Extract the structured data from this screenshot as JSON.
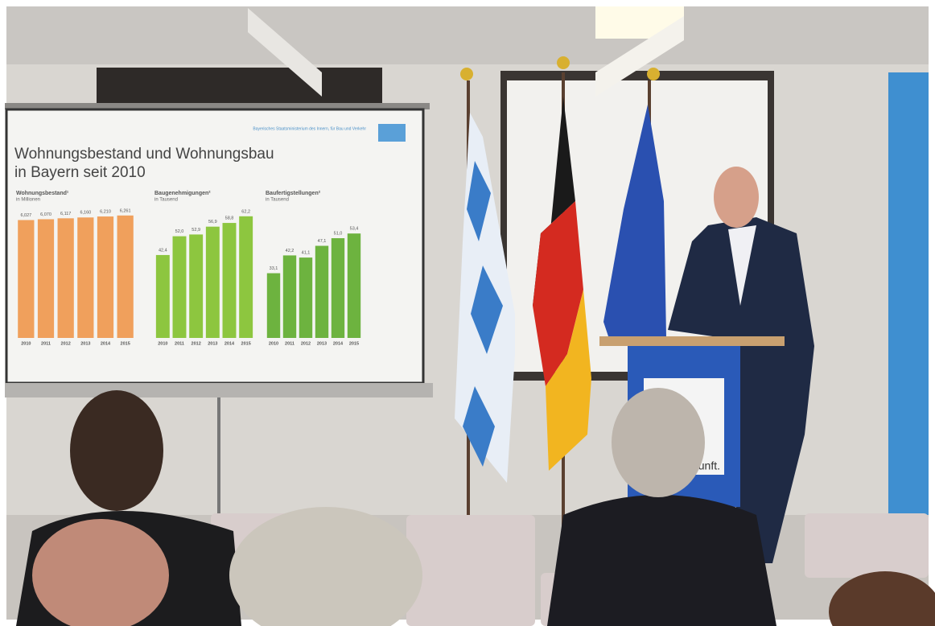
{
  "slide": {
    "header": "Bayerisches Staatsministerium des Innern, für Bau und Verkehr",
    "title_lines": [
      "Wohnungsbestand und Wohnungsbau",
      "in Bayern seit 2010"
    ]
  },
  "podium_text": "unft.",
  "chart_data": [
    {
      "type": "bar",
      "title": "Wohnungsbestand¹",
      "subtitle": "in Millionen",
      "categories": [
        "2010",
        "2011",
        "2012",
        "2013",
        "2014",
        "2015"
      ],
      "values": [
        6.027,
        6.07,
        6.117,
        6.16,
        6.21,
        6.261
      ],
      "value_labels": [
        "6,027",
        "6,070",
        "6,117",
        "6,160",
        "6,210",
        "6,261"
      ],
      "color": "#f0a05c",
      "ylim": [
        0,
        6.5
      ]
    },
    {
      "type": "bar",
      "title": "Baugenehmigungen²",
      "subtitle": "in Tausend",
      "categories": [
        "2010",
        "2011",
        "2012",
        "2013",
        "2014",
        "2015"
      ],
      "values": [
        42.4,
        52.0,
        52.9,
        56.9,
        58.8,
        62.2
      ],
      "value_labels": [
        "42,4",
        "52,0",
        "52,9",
        "56,9",
        "58,8",
        "62,2"
      ],
      "color": "#8dc63f",
      "ylim": [
        0,
        65
      ]
    },
    {
      "type": "bar",
      "title": "Baufertigstellungen²",
      "subtitle": "in Tausend",
      "categories": [
        "2010",
        "2011",
        "2012",
        "2013",
        "2014",
        "2015"
      ],
      "values": [
        33.1,
        42.2,
        41.1,
        47.1,
        51.0,
        53.4
      ],
      "value_labels": [
        "33,1",
        "42,2",
        "41,1",
        "47,1",
        "51,0",
        "53,4"
      ],
      "color": "#6db33f",
      "ylim": [
        0,
        65
      ]
    }
  ]
}
